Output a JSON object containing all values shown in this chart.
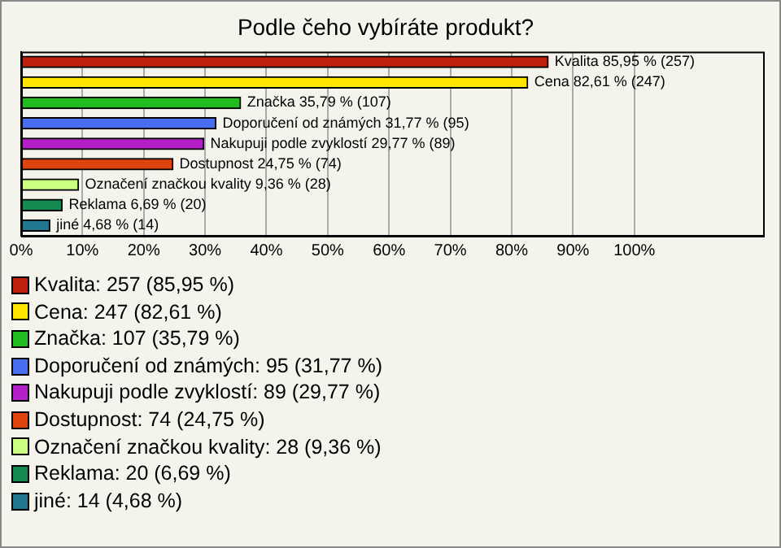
{
  "chart_data": {
    "type": "bar",
    "orientation": "horizontal",
    "title": "Podle čeho vybíráte produkt?",
    "categories": [
      null,
      null,
      null,
      null,
      null,
      null,
      null,
      null,
      null
    ],
    "series": [
      {
        "name": "Kvalita: 257 (85,95 %)",
        "color": "#c0200e",
        "values": [
          85.95,
          null,
          null,
          null,
          null,
          null,
          null,
          null,
          null
        ],
        "value_labels": [
          "Kvalita 85,95 % (257)",
          null,
          null,
          null,
          null,
          null,
          null,
          null,
          null
        ]
      },
      {
        "name": "Cena: 247 (82,61 %)",
        "color": "#ffe600",
        "values": [
          null,
          82.61,
          null,
          null,
          null,
          null,
          null,
          null,
          null
        ],
        "value_labels": [
          null,
          "Cena 82,61 % (247)",
          null,
          null,
          null,
          null,
          null,
          null,
          null
        ]
      },
      {
        "name": "Značka: 107 (35,79 %)",
        "color": "#22bb22",
        "values": [
          null,
          null,
          35.79,
          null,
          null,
          null,
          null,
          null,
          null
        ],
        "value_labels": [
          null,
          null,
          "Značka 35,79 % (107)",
          null,
          null,
          null,
          null,
          null,
          null
        ]
      },
      {
        "name": "Doporučení od známých: 95 (31,77 %)",
        "color": "#4a6ef0",
        "values": [
          null,
          null,
          null,
          31.77,
          null,
          null,
          null,
          null,
          null
        ],
        "value_labels": [
          null,
          null,
          null,
          "Doporučení od známých 31,77 % (95)",
          null,
          null,
          null,
          null,
          null
        ]
      },
      {
        "name": "Nakupuji podle zvyklostí: 89 (29,77 %)",
        "color": "#b420c8",
        "values": [
          null,
          null,
          null,
          null,
          29.77,
          null,
          null,
          null,
          null
        ],
        "value_labels": [
          null,
          null,
          null,
          null,
          "Nakupuji podle zvyklostí 29,77 % (89)",
          null,
          null,
          null,
          null
        ]
      },
      {
        "name": "Dostupnost: 74 (24,75 %)",
        "color": "#e0440e",
        "values": [
          null,
          null,
          null,
          null,
          null,
          24.75,
          null,
          null,
          null
        ],
        "value_labels": [
          null,
          null,
          null,
          null,
          null,
          "Dostupnost 24,75 % (74)",
          null,
          null,
          null
        ]
      },
      {
        "name": "Označení značkou kvality: 28 (9,36 %)",
        "color": "#ccff80",
        "values": [
          null,
          null,
          null,
          null,
          null,
          null,
          9.36,
          null,
          null
        ],
        "value_labels": [
          null,
          null,
          null,
          null,
          null,
          null,
          "Označení značkou kvality 9,36 % (28)",
          null,
          null
        ]
      },
      {
        "name": "Reklama: 20 (6,69 %)",
        "color": "#148a50",
        "values": [
          null,
          null,
          null,
          null,
          null,
          null,
          null,
          6.69,
          null
        ],
        "value_labels": [
          null,
          null,
          null,
          null,
          null,
          null,
          null,
          "Reklama 6,69 % (20)",
          null
        ]
      },
      {
        "name": "jiné: 14 (4,68 %)",
        "color": "#1f7890",
        "values": [
          null,
          null,
          null,
          null,
          null,
          null,
          null,
          null,
          4.68
        ],
        "value_labels": [
          null,
          null,
          null,
          null,
          null,
          null,
          null,
          null,
          "jiné 4,68 % (14)"
        ]
      }
    ],
    "xlim": [
      0,
      121
    ],
    "xticks": [
      {
        "value": 0,
        "label": "0%"
      },
      {
        "value": 10,
        "label": "10%"
      },
      {
        "value": 20,
        "label": "20%"
      },
      {
        "value": 30,
        "label": "30%"
      },
      {
        "value": 40,
        "label": "40%"
      },
      {
        "value": 50,
        "label": "50%"
      },
      {
        "value": 60,
        "label": "60%"
      },
      {
        "value": 70,
        "label": "70%"
      },
      {
        "value": 80,
        "label": "80%"
      },
      {
        "value": 90,
        "label": "90%"
      },
      {
        "value": 100,
        "label": "100%"
      }
    ],
    "grid": "x",
    "legend": "bottom"
  }
}
